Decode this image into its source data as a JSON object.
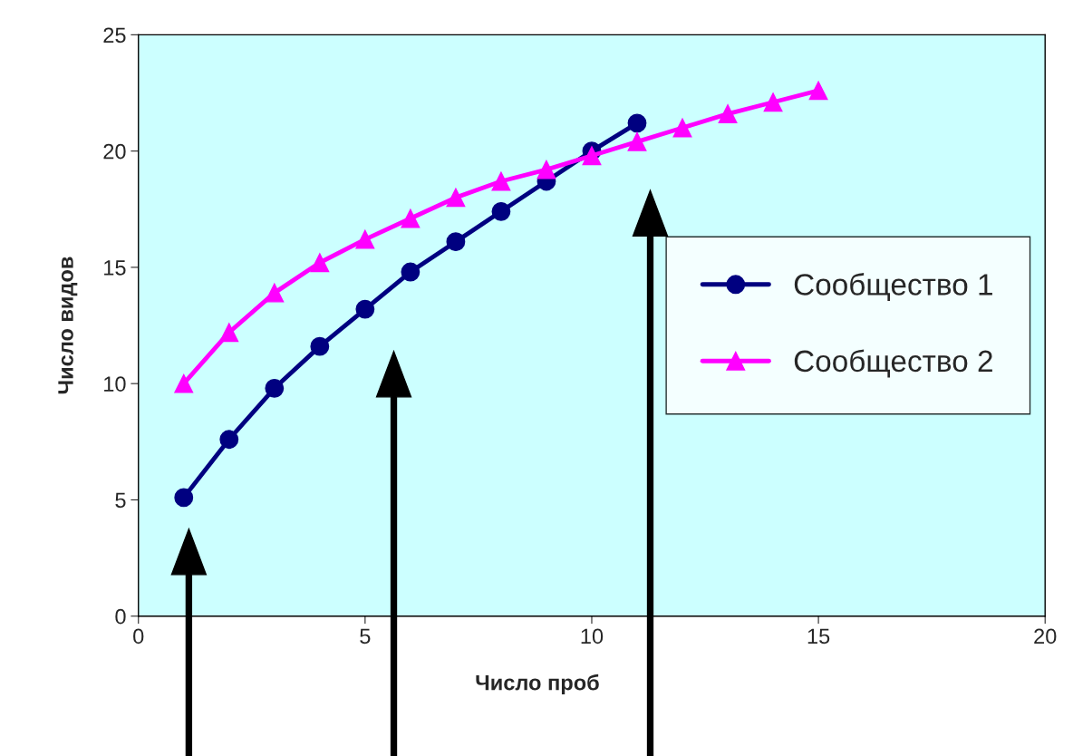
{
  "chart_data": {
    "type": "line",
    "xlabel": "Число проб",
    "ylabel": "Число видов",
    "xlim": [
      0,
      20
    ],
    "xticks": [
      0,
      5,
      10,
      15,
      20
    ],
    "ylim": [
      0,
      25
    ],
    "yticks": [
      0,
      5,
      10,
      15,
      20,
      25
    ],
    "grid": false,
    "legend": "right",
    "line_style": "solid",
    "series": [
      {
        "name": "Сообщество 1",
        "color": "#000080",
        "marker": "circle",
        "x": [
          1,
          2,
          3,
          4,
          5,
          6,
          7,
          8,
          9,
          10,
          11
        ],
        "values": [
          5.1,
          7.6,
          9.8,
          11.6,
          13.2,
          14.8,
          16.1,
          17.4,
          18.7,
          20.0,
          21.2
        ]
      },
      {
        "name": "Сообщество 2",
        "color": "#ff00ff",
        "marker": "triangle",
        "x": [
          1,
          2,
          3,
          4,
          5,
          6,
          7,
          8,
          9,
          10,
          11,
          12,
          13,
          14,
          15
        ],
        "values": [
          10.0,
          12.2,
          13.9,
          15.2,
          16.2,
          17.1,
          18.0,
          18.7,
          19.2,
          19.8,
          20.4,
          21.0,
          21.6,
          22.1,
          22.6
        ]
      }
    ]
  }
}
